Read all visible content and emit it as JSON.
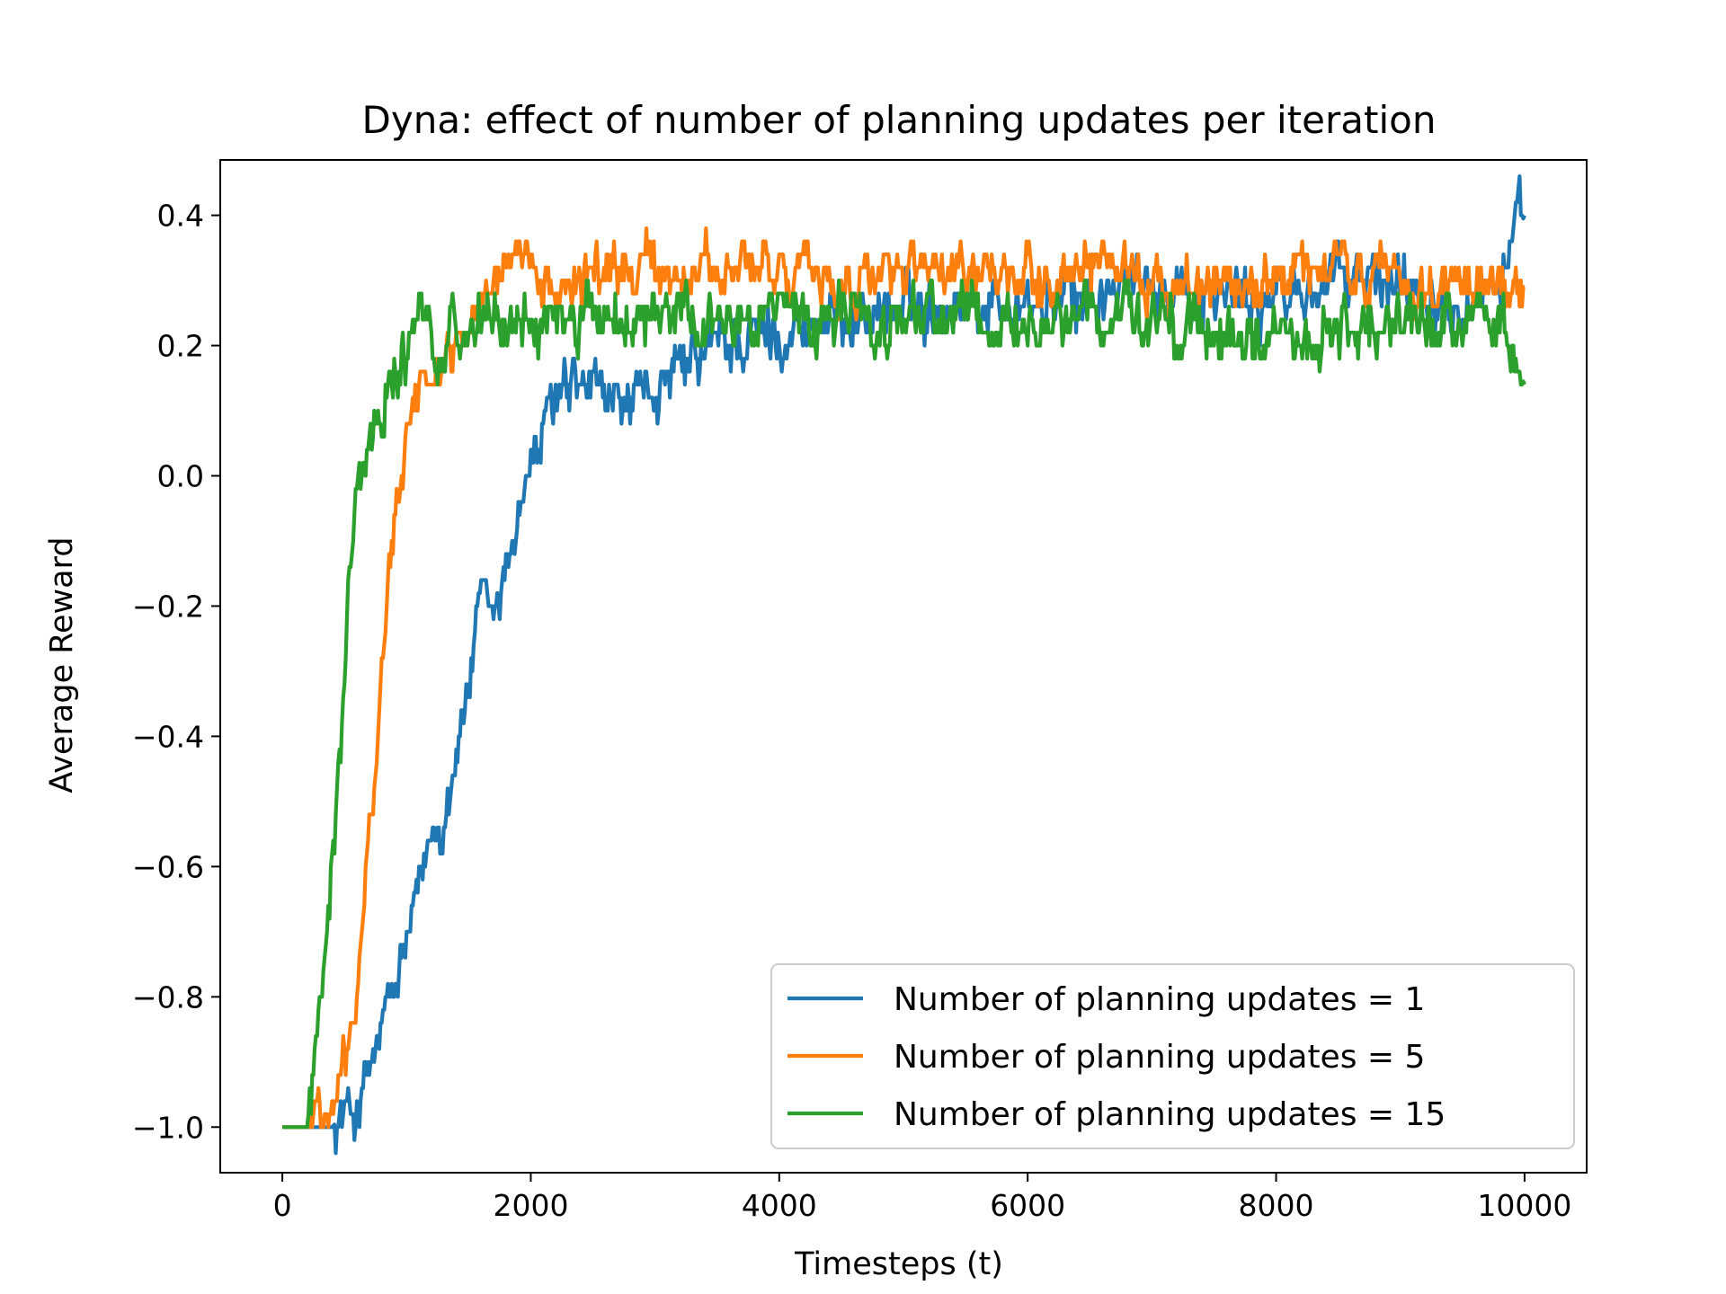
{
  "chart_data": {
    "type": "line",
    "title": "Dyna: effect of number of planning updates per iteration",
    "xlabel": "Timesteps (t)",
    "ylabel": "Average Reward",
    "xlim": [
      -500,
      10500
    ],
    "ylim": [
      -1.07,
      0.485
    ],
    "xticks": [
      0,
      2000,
      4000,
      6000,
      8000,
      10000
    ],
    "xtick_labels": [
      "0",
      "2000",
      "4000",
      "6000",
      "8000",
      "10000"
    ],
    "yticks": [
      -1.0,
      -0.8,
      -0.6,
      -0.4,
      -0.2,
      0.0,
      0.2,
      0.4
    ],
    "ytick_labels": [
      "−1.0",
      "−0.8",
      "−0.6",
      "−0.4",
      "−0.2",
      "0.0",
      "0.2",
      "0.4"
    ],
    "grid": false,
    "legend_position": "lower-right",
    "series": [
      {
        "name": "Number of planning updates = 1",
        "color": "#1f77b4",
        "x": [
          0,
          200,
          400,
          500,
          600,
          700,
          800,
          900,
          1000,
          1100,
          1200,
          1300,
          1400,
          1500,
          1600,
          1700,
          1800,
          1900,
          2000,
          2100,
          2200,
          2400,
          2600,
          2800,
          3000,
          3200,
          3500,
          4000,
          4500,
          5000,
          5500,
          6000,
          6500,
          7000,
          7500,
          8000,
          8500,
          9000,
          9500,
          9800,
          10000
        ],
        "y": [
          -1.0,
          -1.0,
          -1.0,
          -0.98,
          -0.97,
          -0.92,
          -0.85,
          -0.8,
          -0.72,
          -0.65,
          -0.55,
          -0.52,
          -0.42,
          -0.32,
          -0.2,
          -0.22,
          -0.15,
          -0.05,
          0.02,
          0.06,
          0.12,
          0.13,
          0.12,
          0.1,
          0.13,
          0.15,
          0.2,
          0.22,
          0.24,
          0.26,
          0.27,
          0.26,
          0.27,
          0.3,
          0.28,
          0.27,
          0.3,
          0.3,
          0.28,
          0.3,
          0.4
        ]
      },
      {
        "name": "Number of planning updates = 5",
        "color": "#ff7f0e",
        "x": [
          0,
          200,
          300,
          400,
          500,
          600,
          700,
          800,
          900,
          1000,
          1100,
          1200,
          1300,
          1400,
          1500,
          1600,
          1800,
          2000,
          2200,
          2500,
          3000,
          3500,
          4000,
          4500,
          5000,
          5500,
          6000,
          6500,
          7000,
          7500,
          8000,
          8500,
          9000,
          9500,
          10000
        ],
        "y": [
          -1.0,
          -1.0,
          -0.95,
          -0.99,
          -0.9,
          -0.8,
          -0.55,
          -0.32,
          -0.08,
          0.1,
          0.12,
          0.15,
          0.18,
          0.2,
          0.24,
          0.3,
          0.31,
          0.3,
          0.3,
          0.31,
          0.32,
          0.31,
          0.32,
          0.3,
          0.31,
          0.3,
          0.3,
          0.32,
          0.3,
          0.3,
          0.29,
          0.32,
          0.29,
          0.3,
          0.29
        ]
      },
      {
        "name": "Number of planning updates = 15",
        "color": "#2ca02c",
        "x": [
          0,
          200,
          250,
          300,
          400,
          500,
          600,
          700,
          800,
          900,
          1000,
          1100,
          1200,
          1300,
          1400,
          1600,
          1800,
          2000,
          2500,
          3000,
          3500,
          4000,
          4500,
          5000,
          5500,
          6000,
          6500,
          7000,
          7500,
          8000,
          8500,
          9000,
          9500,
          9800,
          10000
        ],
        "y": [
          -1.0,
          -1.0,
          -0.92,
          -0.85,
          -0.6,
          -0.3,
          0.0,
          0.06,
          0.1,
          0.16,
          0.2,
          0.22,
          0.21,
          0.22,
          0.24,
          0.23,
          0.23,
          0.23,
          0.25,
          0.25,
          0.24,
          0.24,
          0.23,
          0.24,
          0.24,
          0.22,
          0.24,
          0.23,
          0.22,
          0.21,
          0.22,
          0.23,
          0.23,
          0.24,
          0.14
        ]
      }
    ]
  }
}
